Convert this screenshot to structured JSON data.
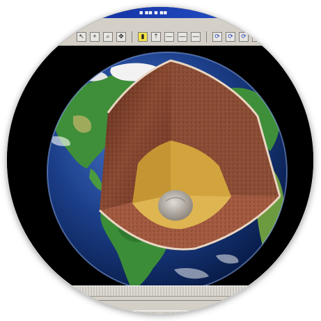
{
  "window": {
    "title": "■ ■■ ■ ■■"
  },
  "menubar": {
    "text": "■ ■ ■"
  },
  "toolbar": {
    "buttons": [
      {
        "icon": "arrow-icon",
        "glyph": "↖"
      },
      {
        "icon": "crosshair-icon",
        "glyph": "+"
      },
      {
        "icon": "zoom-icon",
        "glyph": "⌕"
      },
      {
        "icon": "pan-icon",
        "glyph": "✥"
      },
      {
        "icon": "highlight-icon",
        "glyph": "▮"
      },
      {
        "icon": "pointer-icon",
        "glyph": "⇡"
      },
      {
        "icon": "line-icon",
        "glyph": "—"
      },
      {
        "icon": "line-icon",
        "glyph": "—"
      },
      {
        "icon": "line-icon",
        "glyph": "—"
      },
      {
        "icon": "rotate-icon",
        "glyph": "⟳"
      },
      {
        "icon": "rotate-icon",
        "glyph": "⟳"
      },
      {
        "icon": "rotate-icon",
        "glyph": "⟳"
      },
      {
        "icon": "rotate-icon",
        "glyph": "⟳"
      }
    ]
  },
  "scene": {
    "subject": "Earth interior cutaway",
    "layers": [
      "crust",
      "mantle",
      "outer core",
      "inner core"
    ],
    "colors": {
      "ocean": "#1c3f8a",
      "land": "#3a8a3a",
      "ice": "#f2f2f2",
      "mantle": "#7a3a28",
      "outer_core": "#d8b24a",
      "inner_core": "#b9b1a8",
      "background": "#000000"
    }
  },
  "statusbar": {
    "field_left": "",
    "field_right": ""
  }
}
